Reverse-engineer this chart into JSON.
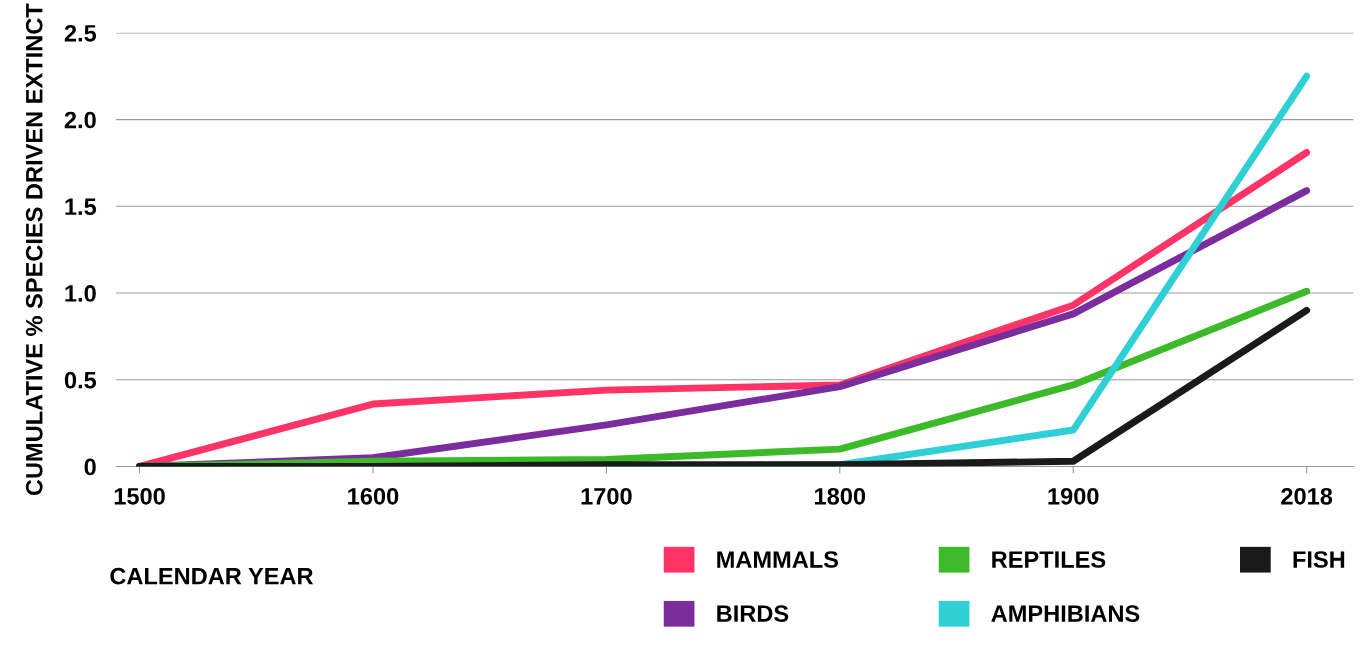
{
  "chart_data": {
    "type": "line",
    "xlabel": "CALENDAR YEAR",
    "ylabel": "CUMULATIVE % SPECIES DRIVEN EXTINCT",
    "categories": [
      "1500",
      "1600",
      "1700",
      "1800",
      "1900",
      "2018"
    ],
    "series": [
      {
        "name": "MAMMALS",
        "color": "#ff3366",
        "values": [
          0,
          0.36,
          0.44,
          0.47,
          0.93,
          1.81
        ]
      },
      {
        "name": "BIRDS",
        "color": "#7b2d9e",
        "values": [
          0,
          0.05,
          0.24,
          0.46,
          0.88,
          1.59
        ]
      },
      {
        "name": "REPTILES",
        "color": "#3cba2a",
        "values": [
          0,
          0.03,
          0.04,
          0.1,
          0.47,
          1.01
        ]
      },
      {
        "name": "AMPHIBIANS",
        "color": "#2ed0d6",
        "values": [
          null,
          null,
          0,
          0.01,
          0.21,
          2.25
        ]
      },
      {
        "name": "FISH",
        "color": "#1a1a1a",
        "values": [
          0,
          0,
          0.01,
          0.01,
          0.03,
          0.9
        ]
      }
    ],
    "ylim": [
      0,
      2.5
    ],
    "yticks": [
      0,
      0.5,
      {
        "value": 1,
        "label": "1.0"
      },
      1.5,
      {
        "value": 2,
        "label": "2.0"
      },
      2.5
    ],
    "grid": "y",
    "legend": "bottom right",
    "marker": "none",
    "line_style": "solid"
  }
}
